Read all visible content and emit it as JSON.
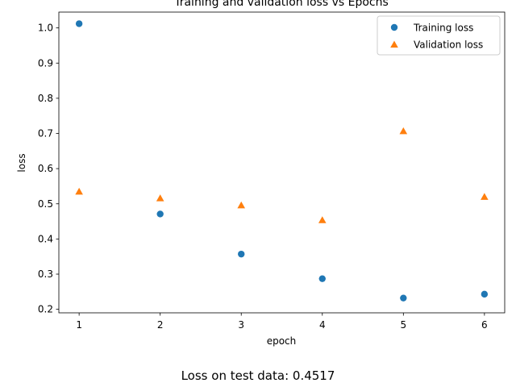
{
  "chart_data": {
    "type": "scatter",
    "title": "Training and validation loss vs Epochs",
    "xlabel": "epoch",
    "ylabel": "loss",
    "xlim": [
      0.75,
      6.25
    ],
    "ylim": [
      0.19,
      1.045
    ],
    "xticks": [
      1,
      2,
      3,
      4,
      5,
      6
    ],
    "yticks": [
      0.2,
      0.3,
      0.4,
      0.5,
      0.6,
      0.7,
      0.8,
      0.9,
      1.0
    ],
    "ytick_labels": [
      "0.2",
      "0.3",
      "0.4",
      "0.5",
      "0.6",
      "0.7",
      "0.8",
      "0.9",
      "1.0"
    ],
    "grid": false,
    "legend_position": "top-right",
    "series": [
      {
        "name": "Training loss",
        "marker": "circle",
        "color": "#1f77b4",
        "x": [
          1,
          2,
          3,
          4,
          5,
          6
        ],
        "y": [
          1.012,
          0.471,
          0.357,
          0.287,
          0.232,
          0.243
        ]
      },
      {
        "name": "Validation loss",
        "marker": "triangle",
        "color": "#ff7f0e",
        "x": [
          1,
          2,
          3,
          4,
          5,
          6
        ],
        "y": [
          0.533,
          0.514,
          0.494,
          0.452,
          0.705,
          0.518
        ]
      }
    ]
  },
  "caption": "Loss on test data: 0.4517"
}
